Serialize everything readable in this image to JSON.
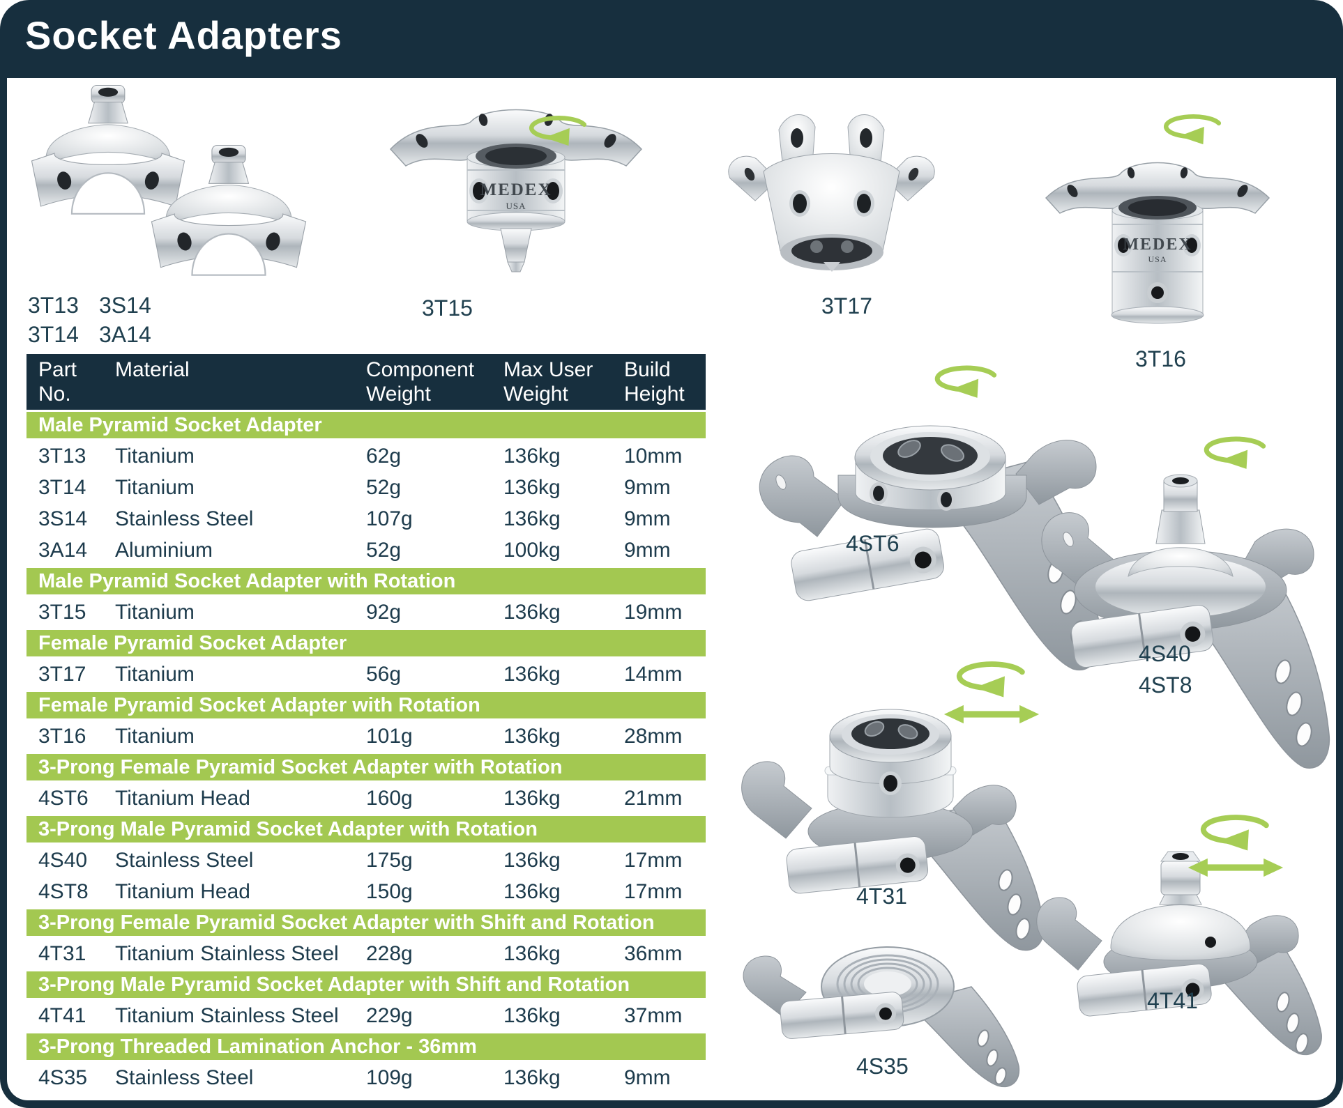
{
  "title": "Socket Adapters",
  "brand": {
    "name": "MEDEX",
    "region": "USA"
  },
  "colors": {
    "navy": "#172f3e",
    "green": "#a3c851",
    "icon_green": "#a6cd55",
    "body_text": "#1d3b4c"
  },
  "products": [
    {
      "name": "male-pyramid-adapters-group",
      "labels_row1": [
        "3T13",
        "3S14"
      ],
      "labels_row2": [
        "3T14",
        "3A14"
      ],
      "motion": "none"
    },
    {
      "name": "3T15",
      "label": "3T15",
      "motion": "rotation"
    },
    {
      "name": "3T17",
      "label": "3T17",
      "motion": "none"
    },
    {
      "name": "3T16",
      "label": "3T16",
      "motion": "rotation"
    },
    {
      "name": "4ST6",
      "label": "4ST6",
      "motion": "rotation"
    },
    {
      "name": "4S40-4ST8",
      "labels": [
        "4S40",
        "4ST8"
      ],
      "motion": "rotation"
    },
    {
      "name": "4T31",
      "label": "4T31",
      "motion": "shift-rotation"
    },
    {
      "name": "4T41",
      "label": "4T41",
      "motion": "shift-rotation"
    },
    {
      "name": "4S35",
      "label": "4S35",
      "motion": "none"
    }
  ],
  "table": {
    "headers": [
      [
        "Part",
        "No."
      ],
      [
        "Material"
      ],
      [
        "Component",
        "Weight"
      ],
      [
        "Max User",
        "Weight"
      ],
      [
        "Build",
        "Height"
      ]
    ],
    "sections": [
      {
        "title": "Male Pyramid Socket Adapter",
        "rows": [
          [
            "3T13",
            "Titanium",
            "62g",
            "136kg",
            "10mm"
          ],
          [
            "3T14",
            "Titanium",
            "52g",
            "136kg",
            "9mm"
          ],
          [
            "3S14",
            "Stainless Steel",
            "107g",
            "136kg",
            "9mm"
          ],
          [
            "3A14",
            "Aluminium",
            "52g",
            "100kg",
            "9mm"
          ]
        ]
      },
      {
        "title": "Male Pyramid Socket Adapter with Rotation",
        "rows": [
          [
            "3T15",
            "Titanium",
            "92g",
            "136kg",
            "19mm"
          ]
        ]
      },
      {
        "title": "Female Pyramid Socket Adapter",
        "rows": [
          [
            "3T17",
            "Titanium",
            "56g",
            "136kg",
            "14mm"
          ]
        ]
      },
      {
        "title": "Female Pyramid Socket Adapter with Rotation",
        "rows": [
          [
            "3T16",
            "Titanium",
            "101g",
            "136kg",
            "28mm"
          ]
        ]
      },
      {
        "title": "3-Prong Female Pyramid Socket Adapter with Rotation",
        "rows": [
          [
            "4ST6",
            "Titanium Head",
            "160g",
            "136kg",
            "21mm"
          ]
        ]
      },
      {
        "title": "3-Prong Male Pyramid Socket Adapter with Rotation",
        "rows": [
          [
            "4S40",
            "Stainless Steel",
            "175g",
            "136kg",
            "17mm"
          ],
          [
            "4ST8",
            "Titanium Head",
            "150g",
            "136kg",
            "17mm"
          ]
        ]
      },
      {
        "title": "3-Prong Female Pyramid Socket Adapter with Shift and Rotation",
        "rows": [
          [
            "4T31",
            "Titanium Stainless Steel",
            "228g",
            "136kg",
            "36mm"
          ]
        ]
      },
      {
        "title": "3-Prong Male Pyramid Socket Adapter with Shift and Rotation",
        "rows": [
          [
            "4T41",
            "Titanium Stainless Steel",
            "229g",
            "136kg",
            "37mm"
          ]
        ]
      },
      {
        "title": "3-Prong Threaded Lamination Anchor - 36mm",
        "rows": [
          [
            "4S35",
            "Stainless Steel",
            "109g",
            "136kg",
            "9mm"
          ]
        ]
      }
    ]
  }
}
